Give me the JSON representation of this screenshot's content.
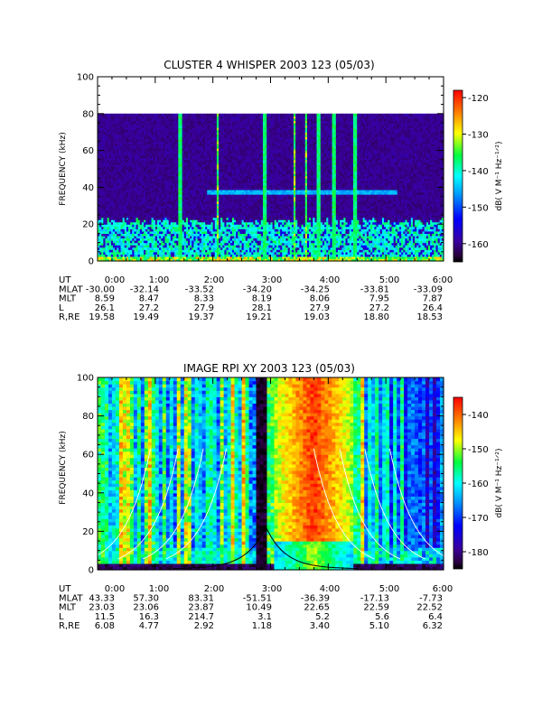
{
  "panels": [
    {
      "title": "CLUSTER 4 WHISPER 2003 123 (05/03)",
      "ylabel": "FREQUENCY (kHz)",
      "yticks": [
        "0",
        "20",
        "40",
        "60",
        "80",
        "100"
      ],
      "colorbar_label": "dB( V M⁻¹ Hz⁻¹ᐟ²)",
      "colorbar_ticks": [
        "-120",
        "-130",
        "-140",
        "-150",
        "-160"
      ],
      "ephemeris": {
        "labels": [
          "UT",
          "MLAT",
          "MLT",
          "L",
          "R,RE"
        ],
        "columns": [
          [
            "0:00",
            "-30.00",
            "8.59",
            "26.1",
            "19.58"
          ],
          [
            "1:00",
            "-32.14",
            "8.47",
            "27.2",
            "19.49"
          ],
          [
            "2:00",
            "-33.52",
            "8.33",
            "27.9",
            "19.37"
          ],
          [
            "3:00",
            "-34.20",
            "8.19",
            "28.1",
            "19.21"
          ],
          [
            "4:00",
            "-34.25",
            "8.06",
            "27.9",
            "19.03"
          ],
          [
            "5:00",
            "-33.81",
            "7.95",
            "27.2",
            "18.80"
          ],
          [
            "6:00",
            "-33.09",
            "7.87",
            "26.4",
            "18.53"
          ]
        ]
      }
    },
    {
      "title": "IMAGE RPI XY 2003 123 (05/03)",
      "ylabel": "FREQUENCY (kHz)",
      "yticks": [
        "0",
        "20",
        "40",
        "60",
        "80",
        "100"
      ],
      "colorbar_label": "dB( V M⁻¹ Hz⁻¹ᐟ²)",
      "colorbar_ticks": [
        "-140",
        "-150",
        "-160",
        "-170",
        "-180"
      ],
      "ephemeris": {
        "labels": [
          "UT",
          "MLAT",
          "MLT",
          "L",
          "R,RE"
        ],
        "columns": [
          [
            "0:00",
            "43.33",
            "23.03",
            "11.5",
            "6.08"
          ],
          [
            "1:00",
            "57.30",
            "23.06",
            "16.3",
            "4.77"
          ],
          [
            "2:00",
            "83.31",
            "23.87",
            "214.7",
            "2.92"
          ],
          [
            "3:00",
            "-51.51",
            "10.49",
            "3.1",
            "1.18"
          ],
          [
            "4:00",
            "-36.39",
            "22.65",
            "5.2",
            "3.40"
          ],
          [
            "5:00",
            "-17.13",
            "22.59",
            "5.6",
            "5.10"
          ],
          [
            "6:00",
            "-7.73",
            "22.52",
            "6.4",
            "6.32"
          ]
        ]
      }
    }
  ],
  "chart_data": [
    {
      "type": "heatmap",
      "title": "CLUSTER 4 WHISPER 2003 123 (05/03)",
      "xlabel": "UT",
      "ylabel": "FREQUENCY (kHz)",
      "xlim": [
        "0:00",
        "6:00"
      ],
      "ylim": [
        0,
        100
      ],
      "data_frequency_range_kHz": [
        0,
        80
      ],
      "colorbar": {
        "label": "dB( V M⁻¹ Hz⁻¹ᐟ²)",
        "range": [
          -165,
          -118
        ],
        "ticks": [
          -120,
          -130,
          -140,
          -150,
          -160
        ]
      },
      "features": {
        "emission_band_kHz": [
          4,
          22
        ],
        "emission_band_peak_kHz": 20,
        "emission_band_peak_dB": -142,
        "background_dB": -160,
        "vertical_spikes_UT": [
          "1:26",
          "2:05",
          "2:54",
          "3:25",
          "3:37",
          "3:50",
          "4:06",
          "4:28"
        ],
        "faint_line_kHz": 38
      }
    },
    {
      "type": "heatmap",
      "title": "IMAGE RPI XY 2003 123 (05/03)",
      "xlabel": "UT",
      "ylabel": "FREQUENCY (kHz)",
      "xlim": [
        "0:00",
        "6:00"
      ],
      "ylim": [
        0,
        100
      ],
      "colorbar": {
        "label": "dB( V M⁻¹ Hz⁻¹ᐟ²)",
        "range": [
          -185,
          -135
        ],
        "ticks": [
          -140,
          -150,
          -160,
          -170,
          -180
        ]
      },
      "features": {
        "data_gap_UT": [
          "2:45",
          "2:56"
        ],
        "intense_emission_UT": [
          "3:05",
          "4:25"
        ],
        "intense_emission_dB": -136,
        "black_curve_peak": {
          "UT": "2:55",
          "kHz": 22
        },
        "white_curves": {
          "left_UT_at_10kHz": [
            "0:07",
            "0:36",
            "1:02",
            "1:26"
          ],
          "right_UT_at_10kHz": [
            "4:33",
            "5:00",
            "5:26",
            "5:52"
          ],
          "count_per_side": 4
        }
      }
    }
  ]
}
